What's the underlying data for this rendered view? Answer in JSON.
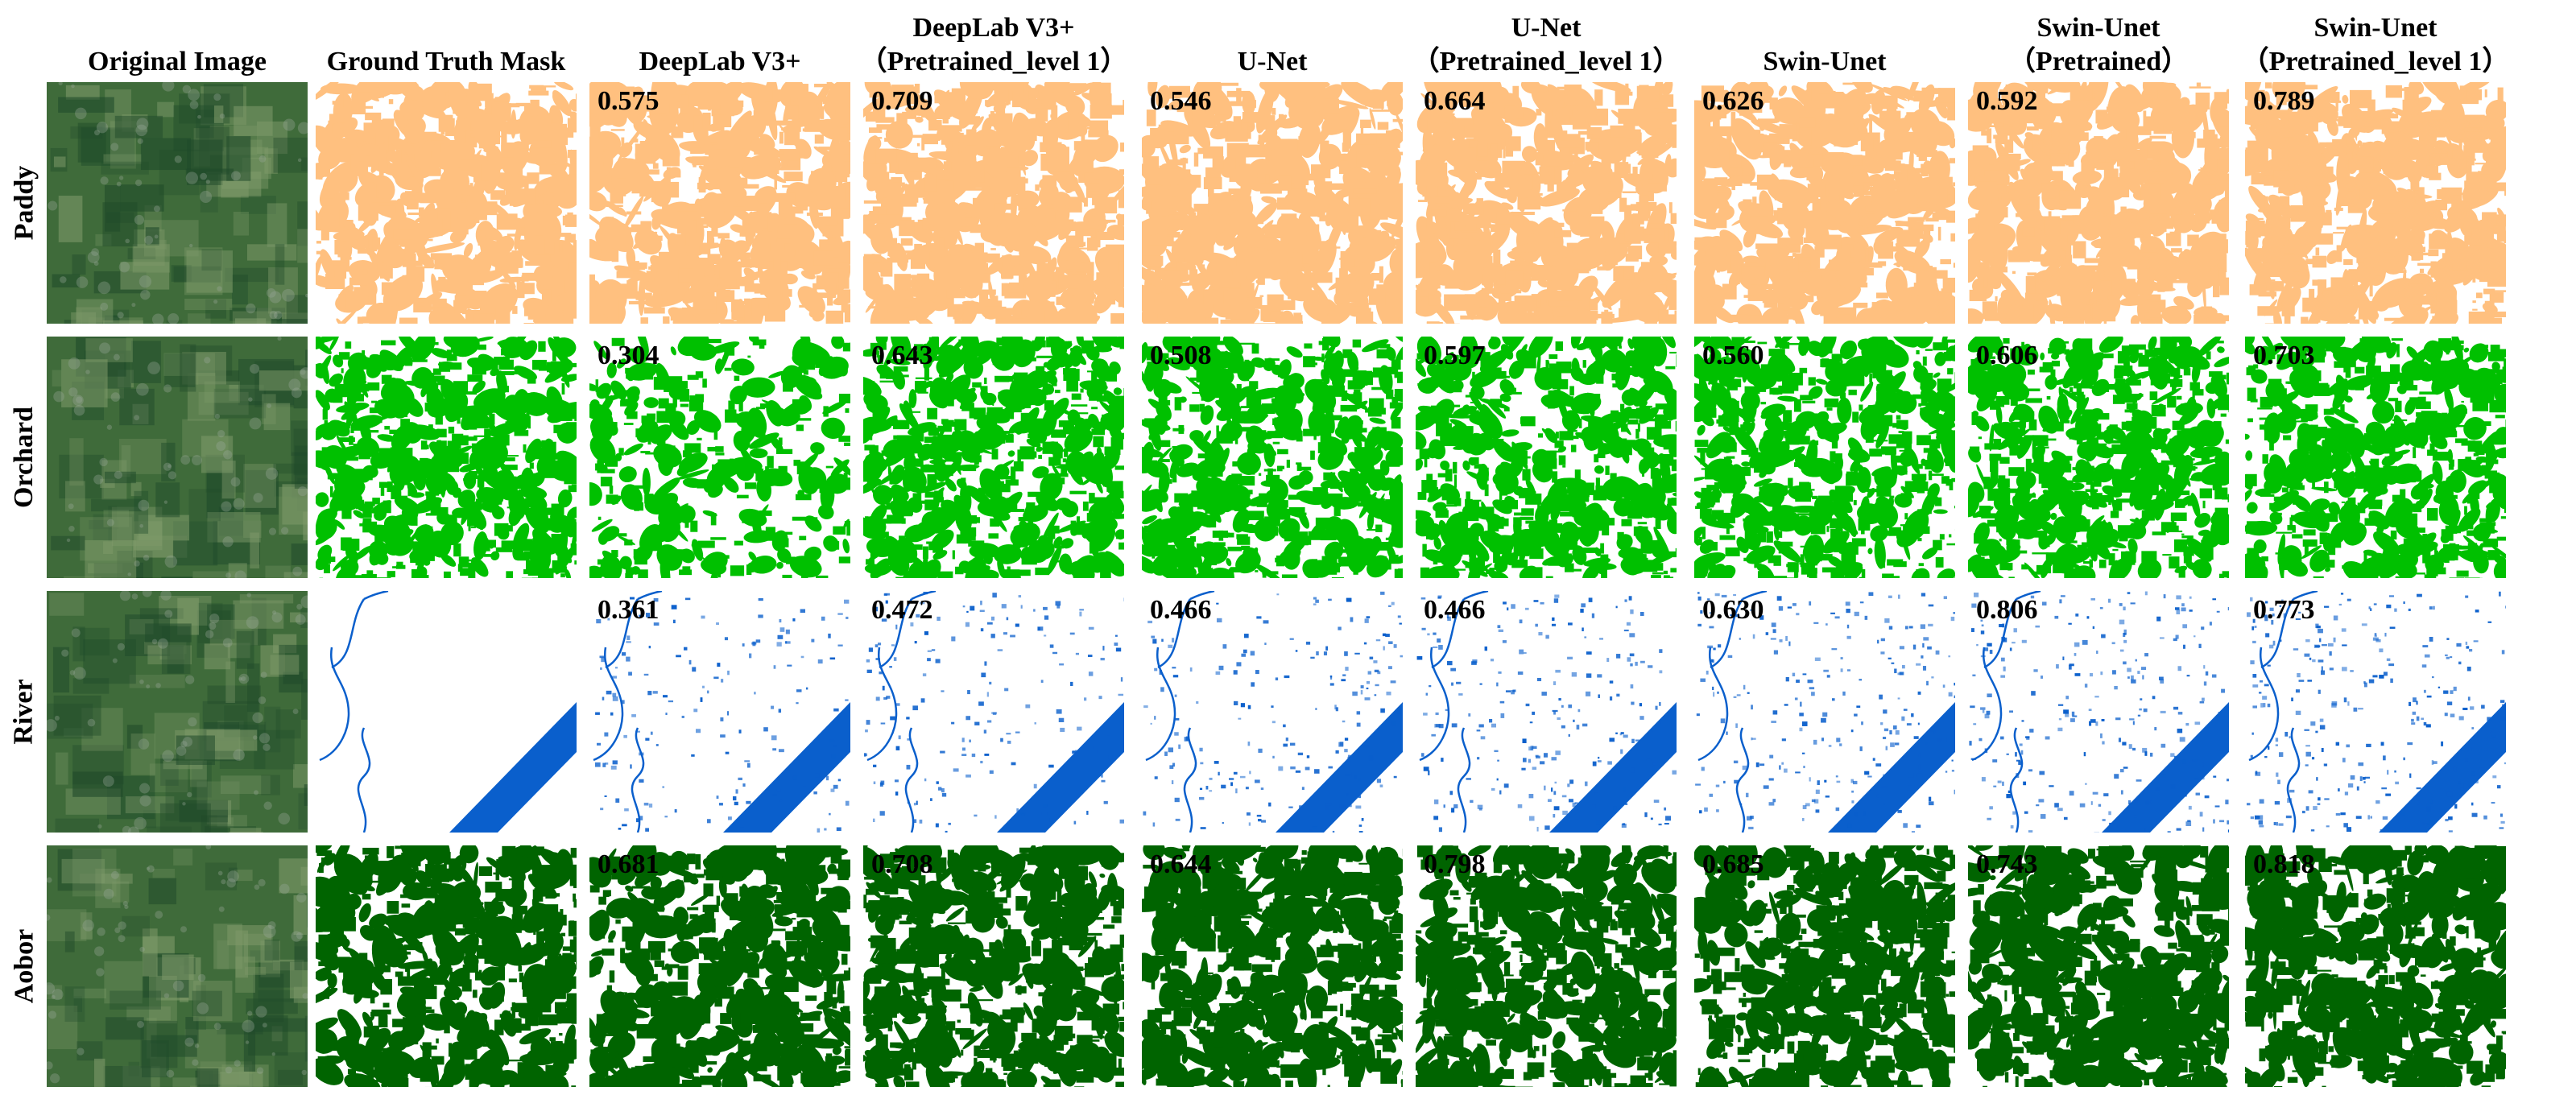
{
  "figure": {
    "columns": [
      {
        "key": "original",
        "lines": [
          "Original Image"
        ]
      },
      {
        "key": "gt",
        "lines": [
          "Ground Truth Mask"
        ]
      },
      {
        "key": "deeplab",
        "lines": [
          "DeepLab V3+"
        ]
      },
      {
        "key": "deeplab_pt",
        "lines": [
          "DeepLab V3+",
          "（Pretrained_level 1）"
        ]
      },
      {
        "key": "unet",
        "lines": [
          "U-Net"
        ]
      },
      {
        "key": "unet_pt",
        "lines": [
          "U-Net",
          "（Pretrained_level 1）"
        ]
      },
      {
        "key": "swin",
        "lines": [
          "Swin-Unet"
        ]
      },
      {
        "key": "swin_pt",
        "lines": [
          "Swin-Unet",
          "（Pretrained）"
        ]
      },
      {
        "key": "swin_pt1",
        "lines": [
          "Swin-Unet",
          "（Pretrained_level 1）"
        ]
      }
    ],
    "rows": [
      {
        "label": "Paddy",
        "color": "#FFC07F",
        "scores": [
          "0.575",
          "0.709",
          "0.546",
          "0.664",
          "0.626",
          "0.592",
          "0.789"
        ]
      },
      {
        "label": "Orchard",
        "color": "#00C000",
        "scores": [
          "0.304",
          "0.643",
          "0.508",
          "0.597",
          "0.560",
          "0.606",
          "0.703"
        ]
      },
      {
        "label": "River",
        "color": "#0A5FCC",
        "scores": [
          "0.361",
          "0.472",
          "0.466",
          "0.466",
          "0.630",
          "0.806",
          "0.773"
        ]
      },
      {
        "label": "Aobor",
        "color": "#006400",
        "scores": [
          "0.681",
          "0.708",
          "0.644",
          "0.798",
          "0.685",
          "0.743",
          "0.818"
        ]
      }
    ],
    "colors": {
      "satellite_base": "#3f6b3a",
      "satellite_light": "#7f9a6a",
      "satellite_dark": "#1f4a2a"
    }
  }
}
